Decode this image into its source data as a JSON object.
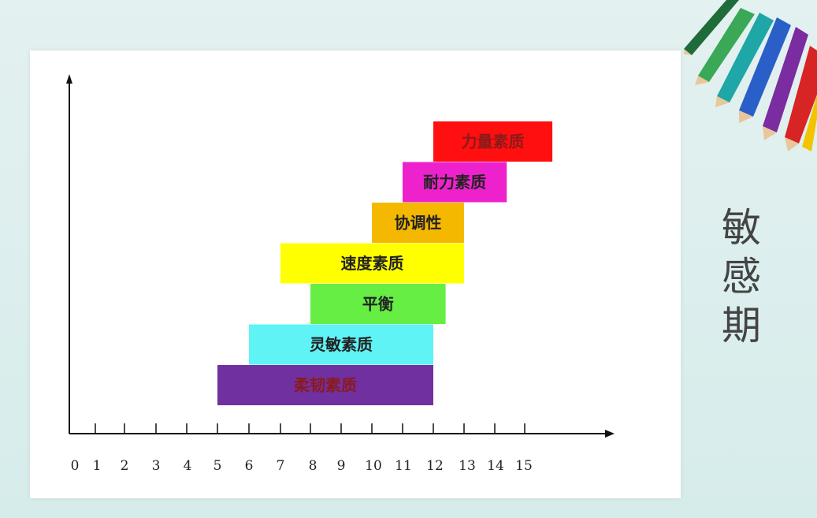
{
  "side_title": "敏\n感\n期",
  "chart_data": {
    "type": "bar",
    "orientation": "horizontal-range",
    "title": "",
    "xlabel": "",
    "ylabel": "",
    "xlim": [
      0,
      15
    ],
    "x_ticks": [
      0,
      1,
      2,
      3,
      4,
      5,
      6,
      7,
      8,
      9,
      10,
      11,
      12,
      13,
      14,
      15
    ],
    "grid": false,
    "series": [
      {
        "label": "柔韧素质",
        "start": 5,
        "end": 12,
        "color": "#7030a0",
        "text_color": "#8b1a1a"
      },
      {
        "label": "灵敏素质",
        "start": 6,
        "end": 12,
        "color": "#5ff3f6",
        "text_color": "#222222"
      },
      {
        "label": "平衡",
        "start": 8,
        "end": 12.4,
        "color": "#66ee44",
        "text_color": "#222222"
      },
      {
        "label": "速度素质",
        "start": 7,
        "end": 13,
        "color": "#ffff00",
        "text_color": "#222222"
      },
      {
        "label": "协调性",
        "start": 10,
        "end": 13,
        "color": "#f5b800",
        "text_color": "#222222"
      },
      {
        "label": "耐力素质",
        "start": 11,
        "end": 14.4,
        "color": "#ee22cc",
        "text_color": "#222222"
      },
      {
        "label": "力量素质",
        "start": 12,
        "end": 15.9,
        "color": "#ff0f0f",
        "text_color": "#8b1a1a"
      }
    ]
  }
}
